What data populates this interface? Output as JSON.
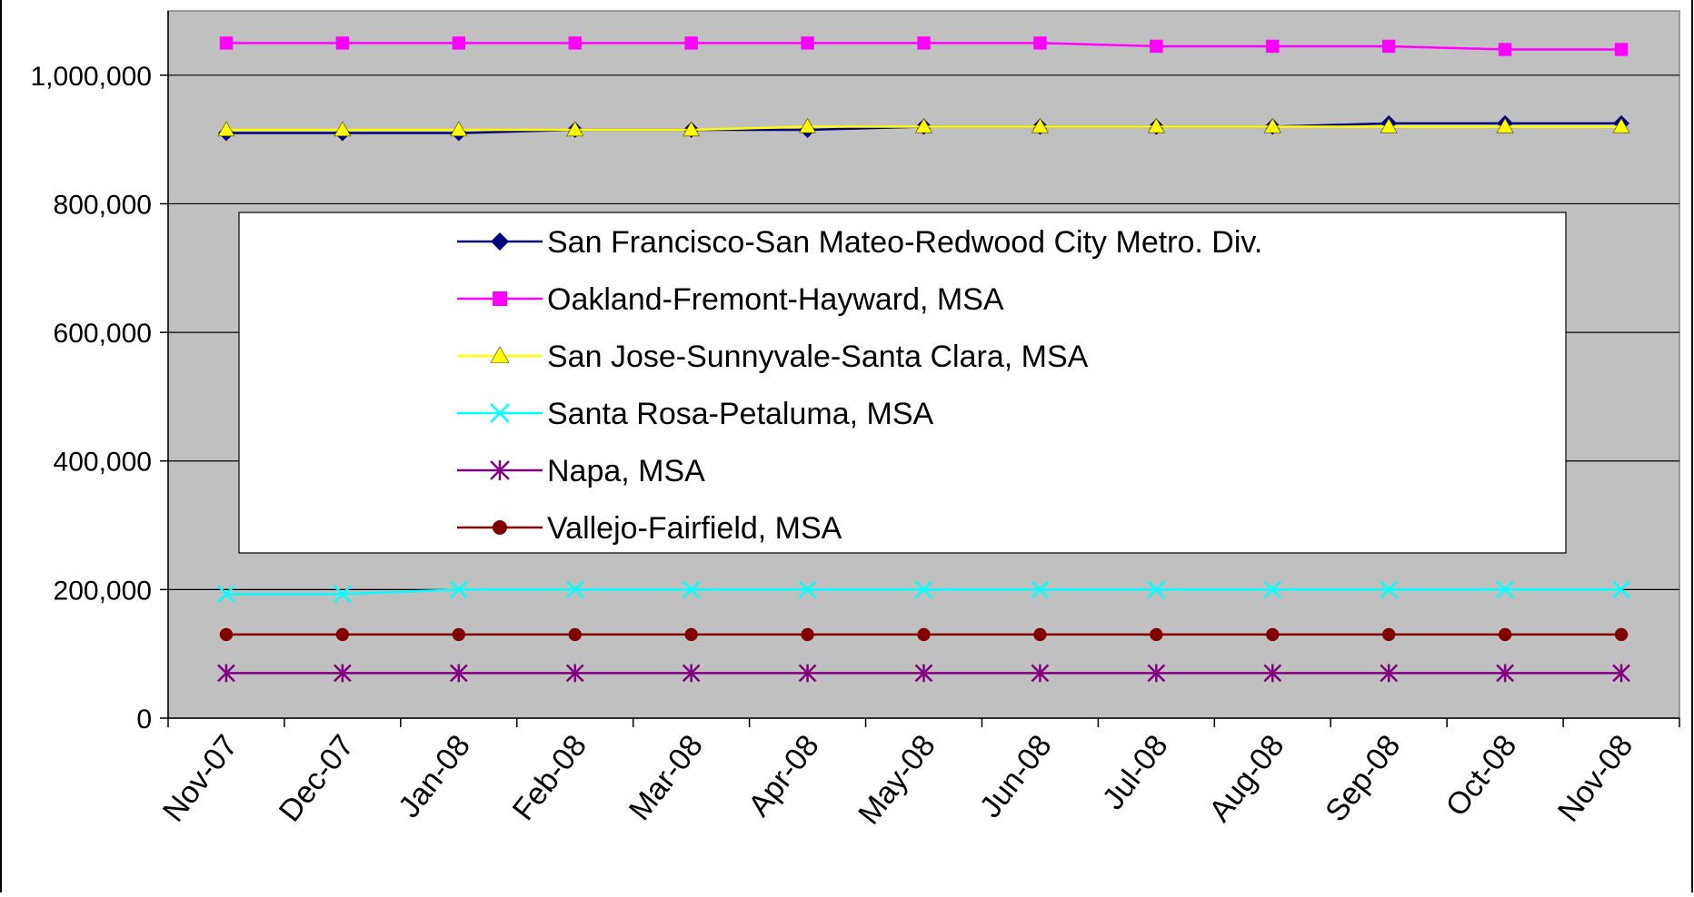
{
  "chart_data": {
    "type": "line",
    "title": "",
    "xlabel": "",
    "ylabel": "",
    "categories": [
      "Nov-07",
      "Dec-07",
      "Jan-08",
      "Feb-08",
      "Mar-08",
      "Apr-08",
      "May-08",
      "Jun-08",
      "Jul-08",
      "Aug-08",
      "Sep-08",
      "Oct-08",
      "Nov-08"
    ],
    "ylim": [
      0,
      1100000
    ],
    "yticks": [
      0,
      200000,
      400000,
      600000,
      800000,
      1000000
    ],
    "ytick_labels": [
      "0",
      "200,000",
      "400,000",
      "600,000",
      "800,000",
      "1,000,000"
    ],
    "grid": true,
    "plot_background": "#c0c0c0",
    "legend_position": "center",
    "series": [
      {
        "name": "San Francisco-San Mateo-Redwood City Metro. Div.",
        "color": "#000080",
        "marker": "diamond",
        "values": [
          910000,
          910000,
          910000,
          915000,
          915000,
          915000,
          920000,
          920000,
          920000,
          920000,
          925000,
          925000,
          925000
        ]
      },
      {
        "name": "Oakland-Fremont-Hayward, MSA",
        "color": "#ff00ff",
        "marker": "square",
        "values": [
          1050000,
          1050000,
          1050000,
          1050000,
          1050000,
          1050000,
          1050000,
          1050000,
          1045000,
          1045000,
          1045000,
          1040000,
          1040000
        ]
      },
      {
        "name": "San Jose-Sunnyvale-Santa Clara, MSA",
        "color": "#ffff00",
        "marker": "triangle",
        "values": [
          915000,
          915000,
          915000,
          915000,
          915000,
          920000,
          920000,
          920000,
          920000,
          920000,
          920000,
          920000,
          920000
        ]
      },
      {
        "name": "Santa Rosa-Petaluma, MSA",
        "color": "#00ffff",
        "marker": "x",
        "values": [
          193000,
          193000,
          200000,
          200000,
          200000,
          200000,
          200000,
          200000,
          200000,
          200000,
          200000,
          200000,
          200000
        ]
      },
      {
        "name": "Napa, MSA",
        "color": "#800080",
        "marker": "star",
        "values": [
          70000,
          70000,
          70000,
          70000,
          70000,
          70000,
          70000,
          70000,
          70000,
          70000,
          70000,
          70000,
          70000
        ]
      },
      {
        "name": "Vallejo-Fairfield, MSA",
        "color": "#800000",
        "marker": "circle",
        "values": [
          130000,
          130000,
          130000,
          130000,
          130000,
          130000,
          130000,
          130000,
          130000,
          130000,
          130000,
          130000,
          130000
        ]
      }
    ]
  }
}
